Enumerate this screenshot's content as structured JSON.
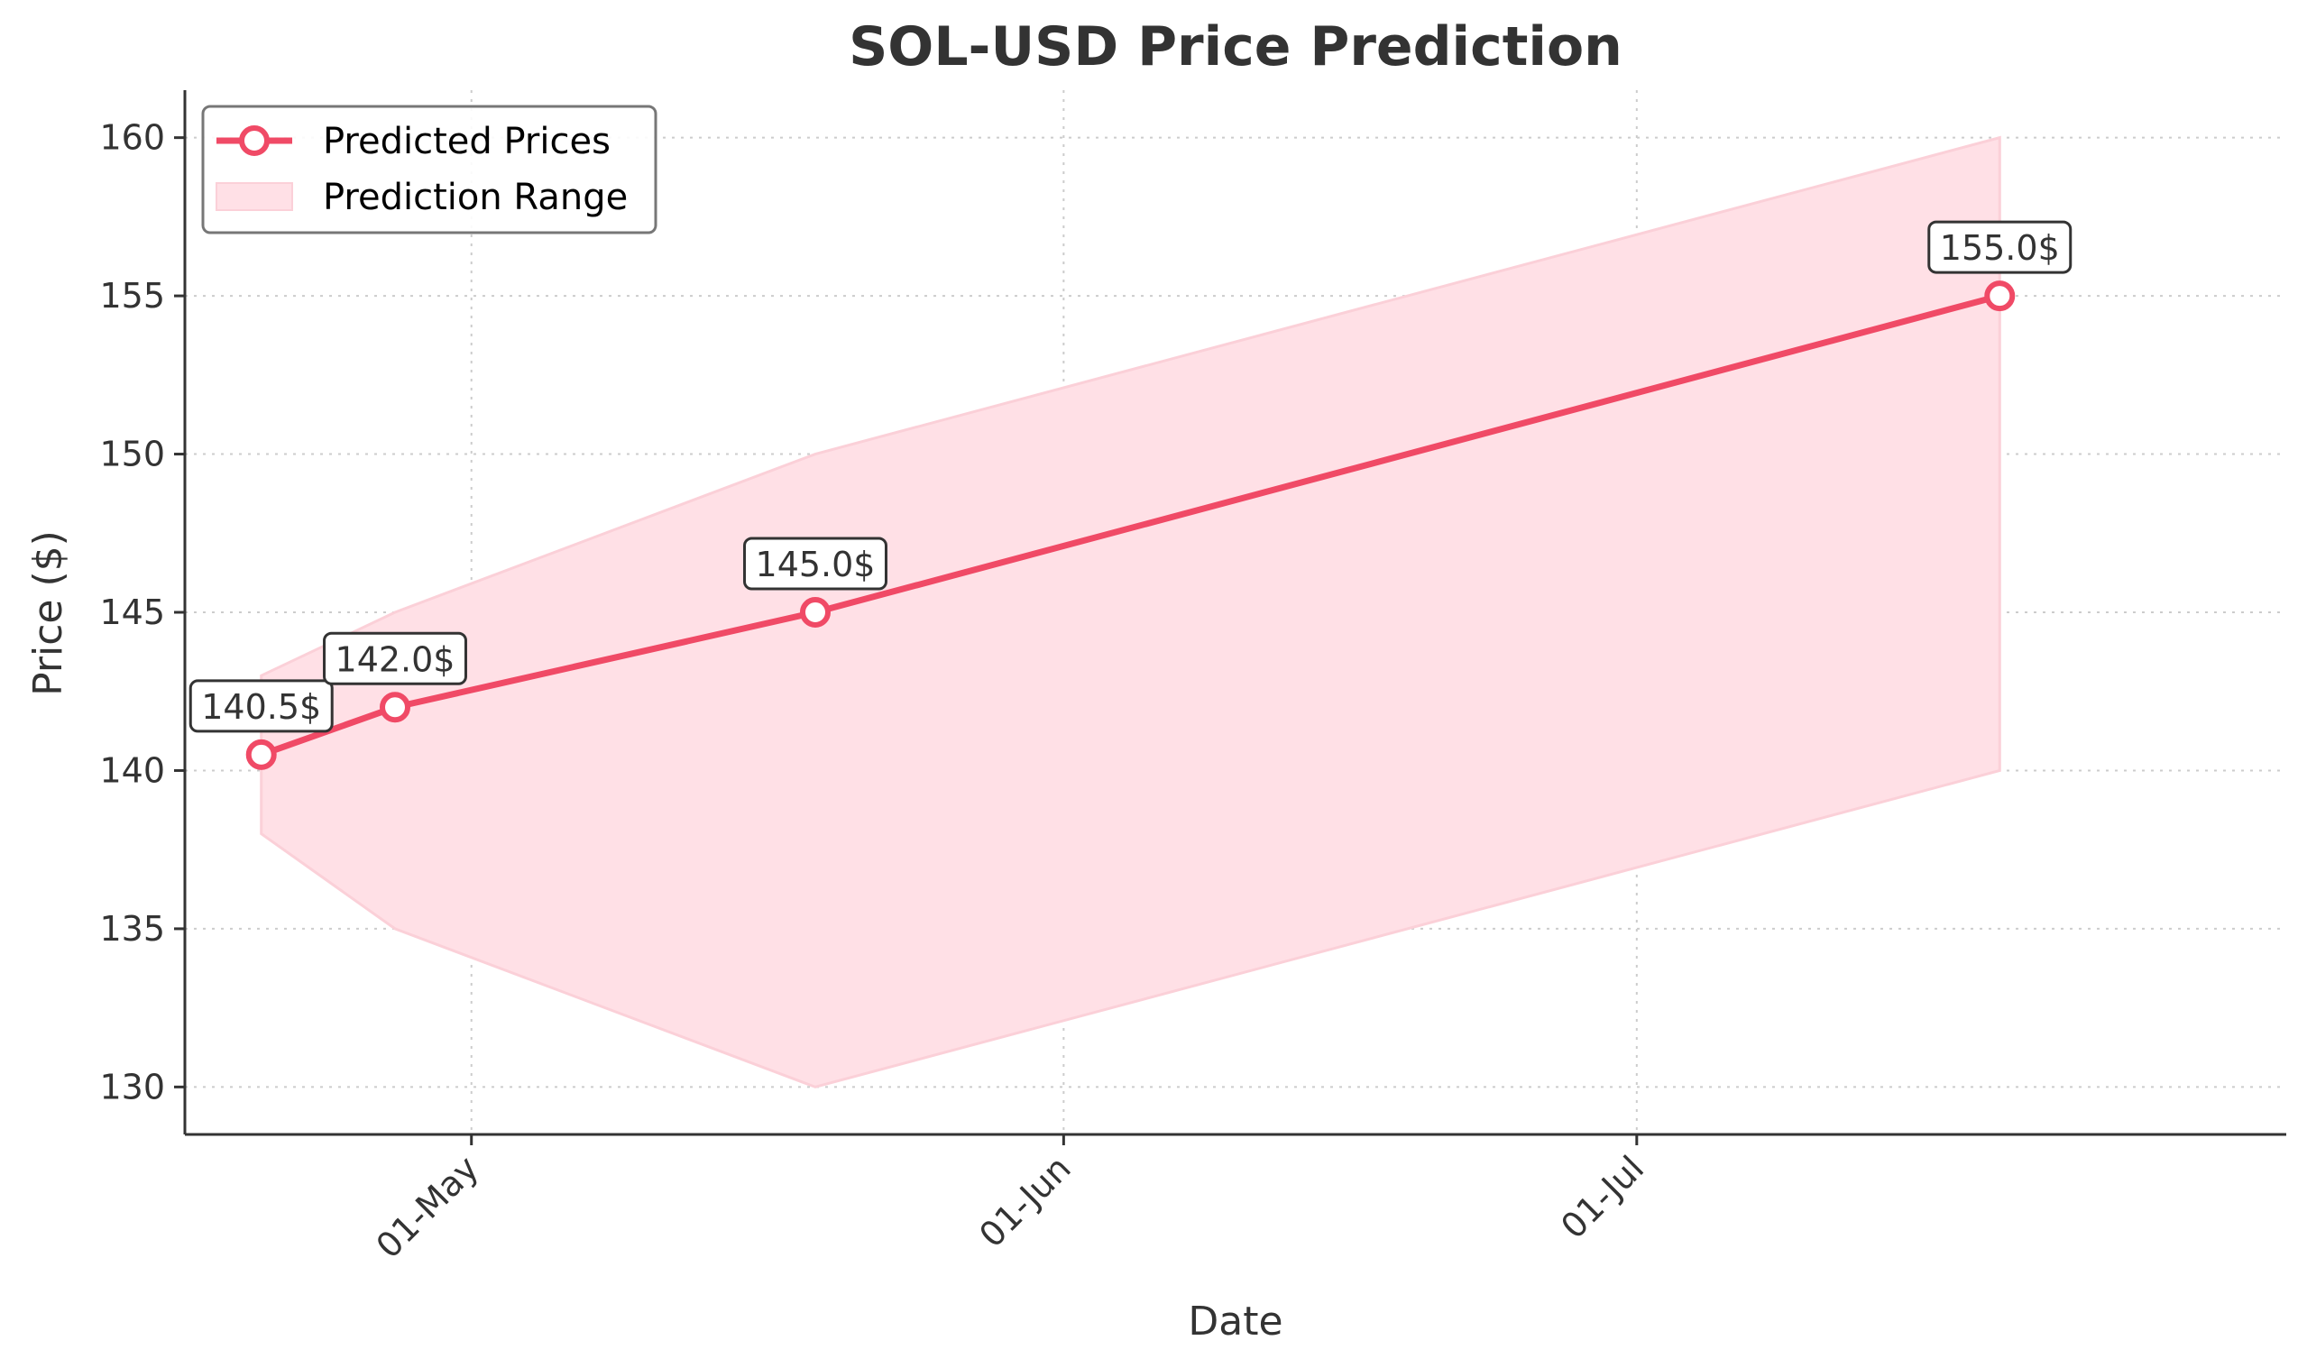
{
  "chart_data": {
    "type": "line",
    "title": "SOL-USD Price Prediction",
    "xlabel": "Date",
    "ylabel": "Price ($)",
    "x_ticks": [
      {
        "date": "2025-05-01",
        "label": "01-May"
      },
      {
        "date": "2025-06-01",
        "label": "01-Jun"
      },
      {
        "date": "2025-07-01",
        "label": "01-Jul"
      }
    ],
    "y_ticks": [
      130,
      135,
      140,
      145,
      150,
      155,
      160
    ],
    "xlim": [
      "2025-04-16",
      "2025-08-04"
    ],
    "ylim": [
      128.5,
      161.5
    ],
    "grid": true,
    "legend_position": "top-left",
    "series": [
      {
        "name": "Predicted Prices",
        "color": "#f04a66",
        "points": [
          {
            "x": "2025-04-20",
            "y": 140.5,
            "label": "140.5$"
          },
          {
            "x": "2025-04-27",
            "y": 142.0,
            "label": "142.0$"
          },
          {
            "x": "2025-05-19",
            "y": 145.0,
            "label": "145.0$"
          },
          {
            "x": "2025-07-20",
            "y": 155.0,
            "label": "155.0$"
          }
        ]
      }
    ],
    "range": {
      "name": "Prediction Range",
      "color": "#ffe0e6",
      "points": [
        {
          "x": "2025-04-20",
          "low": 138,
          "high": 143
        },
        {
          "x": "2025-04-27",
          "low": 135,
          "high": 145
        },
        {
          "x": "2025-05-19",
          "low": 130,
          "high": 150
        },
        {
          "x": "2025-07-20",
          "low": 140,
          "high": 160
        }
      ]
    }
  }
}
